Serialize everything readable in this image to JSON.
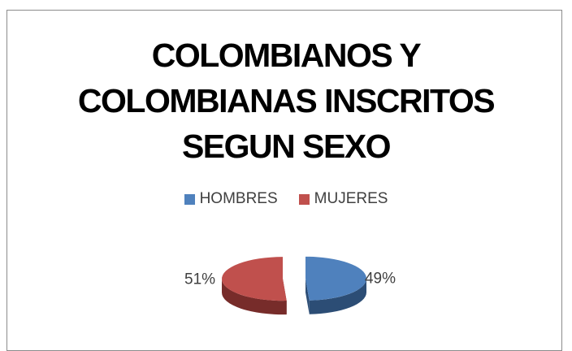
{
  "chart_data": {
    "type": "pie",
    "title_lines": [
      "COLOMBIANOS Y",
      "COLOMBIANAS INSCRITOS",
      "SEGUN SEXO"
    ],
    "categories": [
      "HOMBRES",
      "MUJERES"
    ],
    "values": [
      49,
      51
    ],
    "data_labels": [
      "49%",
      "51%"
    ],
    "colors": [
      "#4f81bd",
      "#c0504d"
    ],
    "colors_dark": [
      "#2c4d75",
      "#772c2a"
    ],
    "legend_position": "top",
    "exploded": true,
    "style": "3d"
  }
}
